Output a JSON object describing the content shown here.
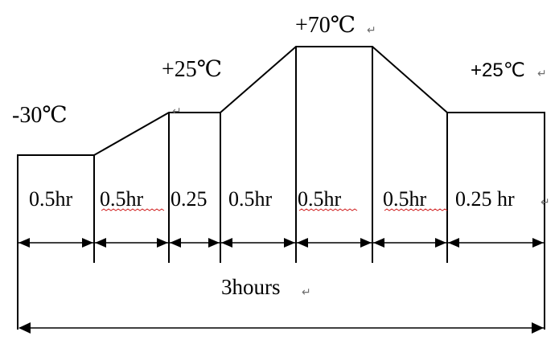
{
  "profile": {
    "temperatures": {
      "start": "-30℃",
      "ramp_up": "+25℃",
      "peak": "+70℃",
      "end": "+25℃"
    },
    "durations": [
      "0.5hr",
      "0.5hr",
      "0.25",
      "0.5hr",
      "0.5hr",
      "0.5hr",
      "0.25 hr"
    ],
    "total": "3hours"
  },
  "colors": {
    "line": "#000000",
    "spellcheck": "#d02020",
    "paragraph_mark": "#6e6e6e"
  }
}
